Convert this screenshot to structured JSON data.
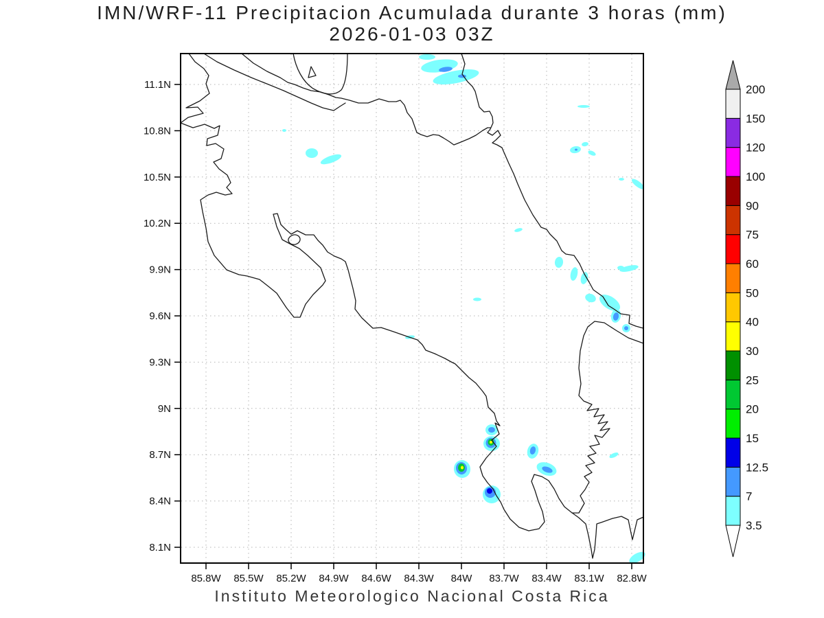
{
  "title": {
    "line1": "IMN/WRF-11 Precipitacion Acumulada durante 3 horas (mm)",
    "line2": "2026-01-03 03Z"
  },
  "footer": {
    "text": "Instituto Meteorologico Nacional Costa Rica"
  },
  "axes": {
    "lat_labels_top_to_bottom": [
      "11.1N",
      "10.8N",
      "10.5N",
      "10.2N",
      "9.9N",
      "9.6N",
      "9.3N",
      "9N",
      "8.7N",
      "8.4N",
      "8.1N"
    ],
    "lon_labels_left_to_right": [
      "85.8W",
      "85.5W",
      "85.2W",
      "84.9W",
      "84.6W",
      "84.3W",
      "84W",
      "83.7W",
      "83.4W",
      "83.1W",
      "82.8W"
    ]
  },
  "colorbar": {
    "tick_labels_bottom_to_top": [
      "3.5",
      "7",
      "12.5",
      "15",
      "20",
      "25",
      "30",
      "40",
      "50",
      "60",
      "75",
      "90",
      "100",
      "120",
      "150",
      "200"
    ],
    "segment_colors_bottom_to_top": [
      "#7dffff",
      "#4499ff",
      "#0000e8",
      "#00ee00",
      "#00c832",
      "#009000",
      "#ffff00",
      "#ffc800",
      "#ff7f00",
      "#ff0000",
      "#cc3300",
      "#990000",
      "#ff00ff",
      "#8a2be2",
      "#f0f0f0"
    ],
    "overflow_arrow_color": "#aaaaaa",
    "underflow_arrow_color": "#ffffff",
    "units": "mm"
  },
  "map_colors": {
    "coastline": "#1a1a1a",
    "grid": "#b3b3b3",
    "frame": "#000000"
  },
  "precip_cells": [
    {
      "lat": "11.2N",
      "lon": "84.1W",
      "max_mm": "7-12.5"
    },
    {
      "lat": "10.6N",
      "lon": "85.0W",
      "max_mm": "3.5-7"
    },
    {
      "lat": "10.7N",
      "lon": "83.2W",
      "max_mm": "3.5-7"
    },
    {
      "lat": "10.4N",
      "lon": "82.8W",
      "max_mm": "3.5-7"
    },
    {
      "lat": "9.9N",
      "lon": "82.8W",
      "max_mm": "3.5-7"
    },
    {
      "lat": "9.7N",
      "lon": "83.0W",
      "max_mm": "7-12.5"
    },
    {
      "lat": "8.8N",
      "lon": "83.7W",
      "max_mm": "30-40"
    },
    {
      "lat": "8.6N",
      "lon": "84.0W",
      "max_mm": "30-40"
    },
    {
      "lat": "8.6N",
      "lon": "83.4W",
      "max_mm": "7-12.5"
    },
    {
      "lat": "8.5N",
      "lon": "83.7W",
      "max_mm": "12.5-15"
    },
    {
      "lat": "8.0N",
      "lon": "82.8W",
      "max_mm": "3.5-7"
    }
  ]
}
